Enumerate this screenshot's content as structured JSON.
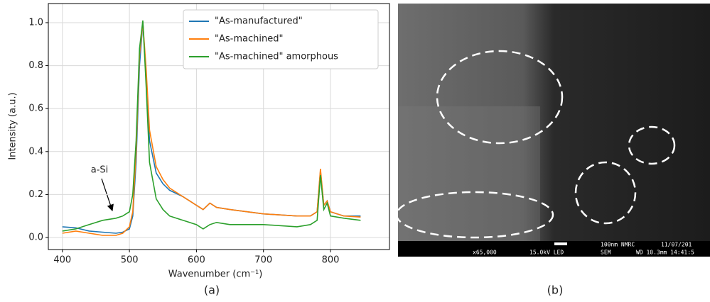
{
  "chart_data": {
    "type": "line",
    "x_label": "Wavenumber (cm⁻¹)",
    "y_label": "Intensity (a.u.)",
    "annotation": "a-Si",
    "x": [
      400,
      420,
      440,
      460,
      480,
      490,
      500,
      505,
      510,
      515,
      520,
      525,
      530,
      540,
      550,
      560,
      580,
      600,
      610,
      620,
      630,
      650,
      700,
      750,
      770,
      780,
      785,
      790,
      795,
      800,
      820,
      845
    ],
    "series": [
      {
        "name": "\"As-manufactured\"",
        "color": "#1f77b4",
        "values": [
          0.05,
          0.045,
          0.03,
          0.025,
          0.02,
          0.025,
          0.04,
          0.1,
          0.35,
          0.8,
          1.0,
          0.75,
          0.45,
          0.3,
          0.25,
          0.22,
          0.19,
          0.15,
          0.13,
          0.16,
          0.14,
          0.13,
          0.11,
          0.1,
          0.1,
          0.12,
          0.31,
          0.15,
          0.17,
          0.12,
          0.1,
          0.1
        ]
      },
      {
        "name": "\"As-machined\"",
        "color": "#ff7f0e",
        "values": [
          0.02,
          0.03,
          0.02,
          0.01,
          0.01,
          0.02,
          0.05,
          0.12,
          0.4,
          0.85,
          1.0,
          0.78,
          0.5,
          0.33,
          0.27,
          0.23,
          0.19,
          0.15,
          0.13,
          0.16,
          0.14,
          0.13,
          0.11,
          0.1,
          0.1,
          0.12,
          0.32,
          0.15,
          0.17,
          0.12,
          0.1,
          0.095
        ]
      },
      {
        "name": "\"As-machined\" amorphous",
        "color": "#2ca02c",
        "values": [
          0.03,
          0.04,
          0.06,
          0.08,
          0.09,
          0.1,
          0.12,
          0.2,
          0.45,
          0.88,
          1.01,
          0.7,
          0.35,
          0.18,
          0.13,
          0.1,
          0.08,
          0.06,
          0.04,
          0.06,
          0.07,
          0.06,
          0.06,
          0.05,
          0.06,
          0.08,
          0.29,
          0.13,
          0.16,
          0.1,
          0.09,
          0.08
        ]
      }
    ],
    "xlim": [
      379,
      888
    ],
    "xticks": [
      400,
      500,
      600,
      700,
      800
    ],
    "ylim": [
      -0.056,
      1.089
    ],
    "yticks": [
      {
        "value": 0,
        "label": "0.0"
      },
      0.2,
      0.4,
      0.6,
      0.8,
      {
        "value": 1,
        "label": "1.0"
      }
    ],
    "grid": true,
    "legend": "upper right"
  },
  "captions": [
    "(a)",
    "(b)"
  ],
  "sem_image": {
    "scale_label": "100nm NMRC",
    "date": "11/07/201",
    "magnification": "x65,000",
    "voltage": "15.0kV LED",
    "mode": "SEM",
    "wd_time": "WD 10.3mm 14:41:5"
  }
}
